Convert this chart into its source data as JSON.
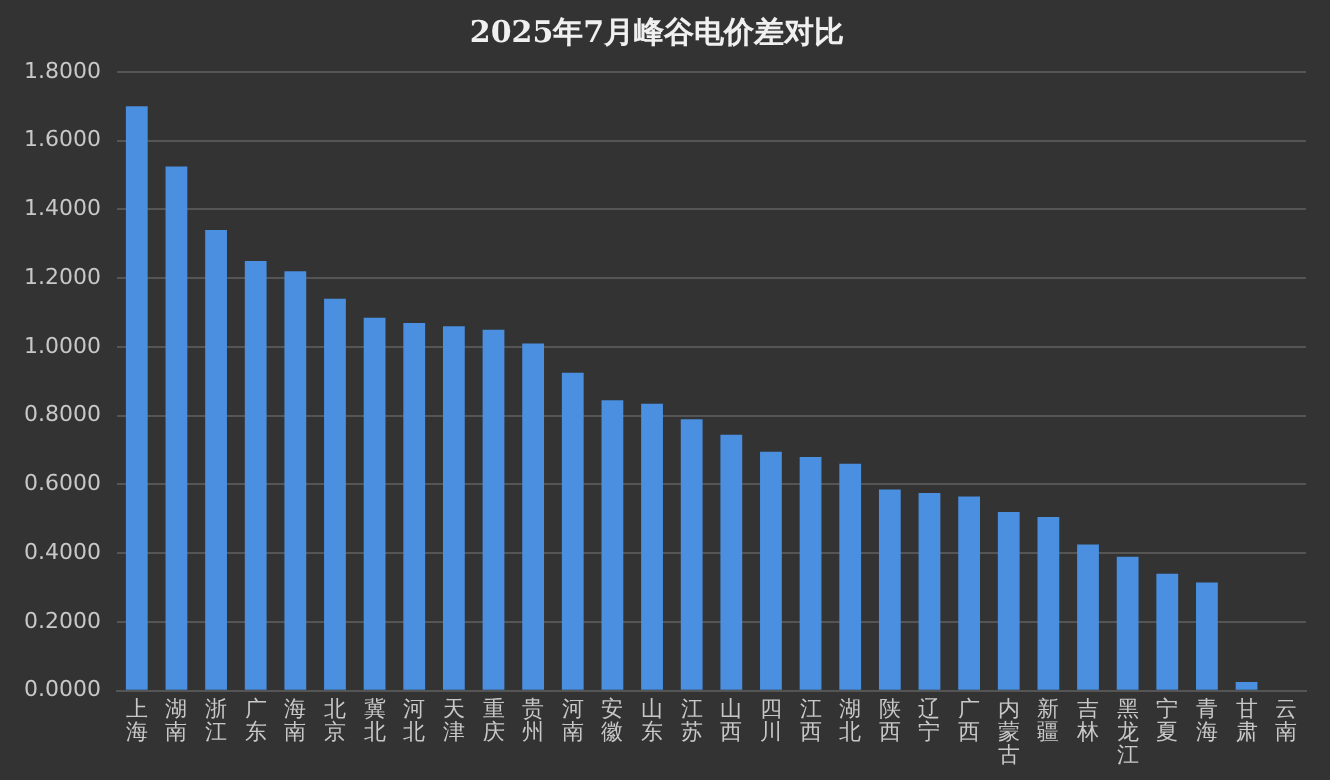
{
  "chart_data": {
    "type": "bar",
    "title": "2025年7月峰谷电价差对比",
    "categories": [
      "上海",
      "湖南",
      "浙江",
      "广东",
      "海南",
      "北京",
      "冀北",
      "河北",
      "天津",
      "重庆",
      "贵州",
      "河南",
      "安徽",
      "山东",
      "江苏",
      "山西",
      "四川",
      "江西",
      "湖北",
      "陕西",
      "辽宁",
      "广西",
      "内蒙古",
      "新疆",
      "吉林",
      "黑龙江",
      "宁夏",
      "青海",
      "甘肃",
      "云南"
    ],
    "values": [
      1.7,
      1.525,
      1.34,
      1.25,
      1.22,
      1.14,
      1.085,
      1.07,
      1.06,
      1.05,
      1.01,
      0.925,
      0.845,
      0.835,
      0.79,
      0.745,
      0.695,
      0.68,
      0.66,
      0.585,
      0.575,
      0.565,
      0.52,
      0.505,
      0.425,
      0.39,
      0.34,
      0.315,
      0.025,
      0
    ],
    "color": "#4a8fe0",
    "ylim": [
      0,
      1.8
    ],
    "yticks": [
      {
        "value": 0,
        "label": "0.0000"
      },
      {
        "value": 0.2,
        "label": "0.2000"
      },
      {
        "value": 0.4,
        "label": "0.4000"
      },
      {
        "value": 0.6,
        "label": "0.6000"
      },
      {
        "value": 0.8,
        "label": "0.8000"
      },
      {
        "value": 1,
        "label": "1.0000"
      },
      {
        "value": 1.2,
        "label": "1.2000"
      },
      {
        "value": 1.4,
        "label": "1.4000"
      },
      {
        "value": 1.6,
        "label": "1.6000"
      },
      {
        "value": 1.8,
        "label": "1.8000"
      }
    ],
    "grid": "y",
    "legend": false
  }
}
